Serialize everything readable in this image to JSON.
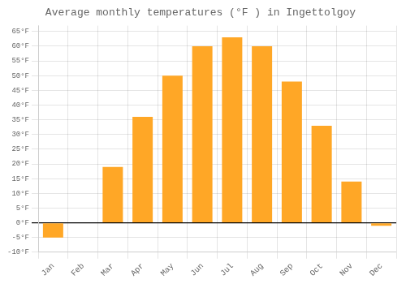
{
  "chart_data": {
    "type": "bar",
    "title": "Average monthly temperatures (°F ) in Ingettolgoy",
    "categories": [
      "Jan",
      "Feb",
      "Mar",
      "Apr",
      "May",
      "Jun",
      "Jul",
      "Aug",
      "Sep",
      "Oct",
      "Nov",
      "Dec"
    ],
    "values": [
      -5,
      0,
      19,
      36,
      50,
      60,
      63,
      60,
      48,
      33,
      14,
      -1
    ],
    "color": "#FFA726",
    "ylim": [
      -10,
      67
    ],
    "yticks": [
      {
        "value": -10,
        "label": "-10°F"
      },
      {
        "value": -5,
        "label": "-5°F"
      },
      {
        "value": 0,
        "label": "0°F"
      },
      {
        "value": 5,
        "label": "5°F"
      },
      {
        "value": 10,
        "label": "10°F"
      },
      {
        "value": 15,
        "label": "15°F"
      },
      {
        "value": 20,
        "label": "20°F"
      },
      {
        "value": 25,
        "label": "25°F"
      },
      {
        "value": 30,
        "label": "30°F"
      },
      {
        "value": 35,
        "label": "35°F"
      },
      {
        "value": 40,
        "label": "40°F"
      },
      {
        "value": 45,
        "label": "45°F"
      },
      {
        "value": 50,
        "label": "50°F"
      },
      {
        "value": 55,
        "label": "55°F"
      },
      {
        "value": 60,
        "label": "60°F"
      },
      {
        "value": 65,
        "label": "65°F"
      }
    ],
    "grid": true
  }
}
